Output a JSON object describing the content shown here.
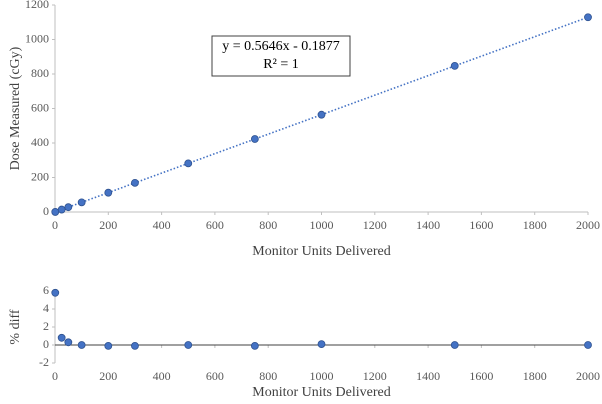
{
  "chart_data": [
    {
      "type": "scatter",
      "x_label": "Monitor Units Delivered",
      "y_label": "Dose Measured (cGy)",
      "annotation": [
        "y = 0.5646x - 0.1877",
        "R² = 1"
      ],
      "x": [
        1,
        25,
        50,
        100,
        200,
        300,
        500,
        750,
        1000,
        1500,
        2000
      ],
      "series": [
        {
          "color": "#4472c4",
          "values": [
            0.4,
            14,
            28,
            56,
            112,
            169,
            282,
            423,
            564,
            847,
            1129
          ]
        }
      ],
      "trendline": true,
      "xlim": [
        0,
        2000
      ],
      "ylim": [
        0,
        1200
      ],
      "xticks": [
        0,
        200,
        400,
        600,
        800,
        1000,
        1200,
        1400,
        1600,
        1800,
        2000
      ],
      "yticks": [
        0,
        200,
        400,
        600,
        800,
        1000,
        1200
      ]
    },
    {
      "type": "scatter",
      "x_label": "Monitor Units Delivered",
      "y_label": "% diff",
      "x": [
        1,
        25,
        50,
        100,
        200,
        300,
        500,
        750,
        1000,
        1500,
        2000
      ],
      "series": [
        {
          "color": "#4472c4",
          "values": [
            5.8,
            0.8,
            0.3,
            0.0,
            -0.1,
            -0.1,
            0.0,
            -0.1,
            0.1,
            0.0,
            0.0
          ]
        }
      ],
      "trendline": false,
      "xlim": [
        0,
        2000
      ],
      "ylim": [
        -2,
        6
      ],
      "xticks": [
        0,
        200,
        400,
        600,
        800,
        1000,
        1200,
        1400,
        1600,
        1800,
        2000
      ],
      "yticks": [
        -2,
        0,
        2,
        4,
        6
      ]
    }
  ]
}
